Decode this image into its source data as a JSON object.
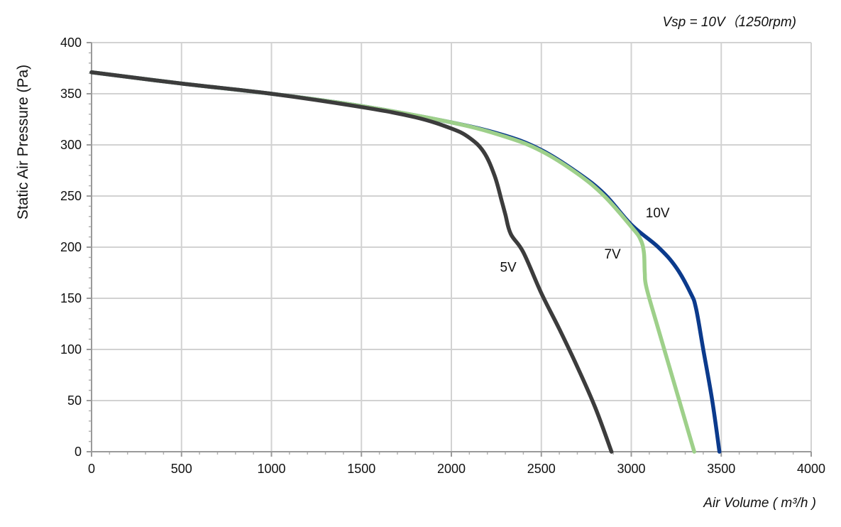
{
  "chart_data": {
    "type": "line",
    "title": "Vsp = 10V（1250rpm)",
    "xlabel": "Air Volume ( m³/h )",
    "ylabel": "Static Air Pressure  (Pa)",
    "xlim": [
      0,
      4000
    ],
    "ylim": [
      0,
      400
    ],
    "x_ticks": [
      0,
      500,
      1000,
      1500,
      2000,
      2500,
      3000,
      3500,
      4000
    ],
    "y_ticks": [
      0,
      50,
      100,
      150,
      200,
      250,
      300,
      350,
      400
    ],
    "grid": true,
    "legend": "inline labels",
    "series": [
      {
        "name": "10V",
        "color": "#0b3a8c",
        "x": [
          0,
          500,
          1000,
          1500,
          2000,
          2300,
          2500,
          2700,
          2850,
          3000,
          3150,
          3250,
          3330,
          3360,
          3400,
          3450,
          3490
        ],
        "y": [
          371,
          360,
          350,
          338,
          322,
          309,
          295,
          273,
          252,
          222,
          200,
          180,
          155,
          140,
          100,
          50,
          0
        ]
      },
      {
        "name": "7V",
        "color": "#9ed08a",
        "x": [
          0,
          500,
          1000,
          1500,
          2000,
          2300,
          2500,
          2700,
          2850,
          3000,
          3050,
          3070,
          3075,
          3085,
          3150,
          3250,
          3350
        ],
        "y": [
          371,
          360,
          350,
          338,
          322,
          308,
          294,
          272,
          250,
          220,
          208,
          195,
          175,
          160,
          120,
          60,
          0
        ]
      },
      {
        "name": "5V",
        "color": "#3c3c3c",
        "x": [
          0,
          500,
          1000,
          1500,
          1800,
          2000,
          2100,
          2180,
          2240,
          2280,
          2300,
          2330,
          2400,
          2500,
          2600,
          2700,
          2800,
          2890
        ],
        "y": [
          371,
          360,
          350,
          337,
          327,
          316,
          307,
          293,
          270,
          245,
          232,
          213,
          195,
          155,
          120,
          83,
          43,
          0
        ]
      }
    ],
    "annotations": [
      {
        "text": "10V",
        "x": 3080,
        "y": 229
      },
      {
        "text": "7V",
        "x": 2850,
        "y": 189
      },
      {
        "text": "5V",
        "x": 2270,
        "y": 176
      }
    ]
  }
}
